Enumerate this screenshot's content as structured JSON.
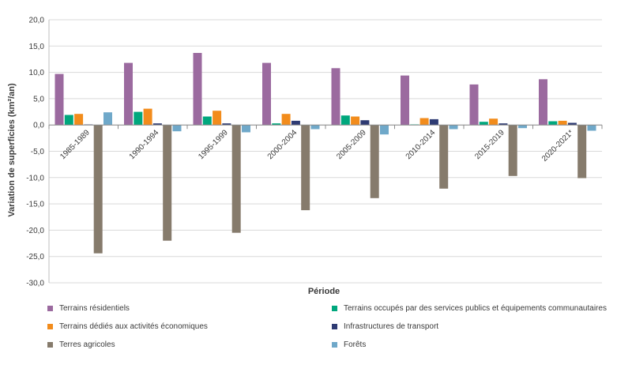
{
  "chart_data": {
    "type": "bar",
    "title": "",
    "xlabel": "Période",
    "ylabel": "Variation de superficies (km²/an)",
    "ylim": [
      -30,
      20
    ],
    "yticks": [
      "20,0",
      "15,0",
      "10,0",
      "5,0",
      "0,0",
      "-5,0",
      "-10,0",
      "-15,0",
      "-20,0",
      "-25,0",
      "-30,0"
    ],
    "grid": true,
    "legend_position": "bottom",
    "categories": [
      "1985-1989",
      "1990-1994",
      "1995-1999",
      "2000-2004",
      "2005-2009",
      "2010-2014",
      "2015-2019",
      "2020-2021*"
    ],
    "series": [
      {
        "name": "Terrains résidentiels",
        "color": "#9b6a9f",
        "values": [
          9.7,
          11.8,
          13.7,
          11.8,
          10.8,
          9.4,
          7.7,
          8.7
        ]
      },
      {
        "name": "Terrains occupés par des services publics et équipements communautaires",
        "color": "#00a77d",
        "values": [
          1.9,
          2.5,
          1.6,
          0.3,
          1.8,
          0.1,
          0.6,
          0.7
        ]
      },
      {
        "name": "Terrains dédiés aux activités économiques",
        "color": "#f28c1c",
        "values": [
          2.1,
          3.1,
          2.7,
          2.1,
          1.6,
          1.3,
          1.2,
          0.8
        ]
      },
      {
        "name": "Infrastructures de transport",
        "color": "#2e3b73",
        "values": [
          0.1,
          0.3,
          0.3,
          0.8,
          0.9,
          1.1,
          0.3,
          0.4
        ]
      },
      {
        "name": "Terres agricoles",
        "color": "#867b6c",
        "values": [
          -24.4,
          -22.0,
          -20.5,
          -16.2,
          -13.9,
          -12.1,
          -9.7,
          -10.1
        ]
      },
      {
        "name": "Forêts",
        "color": "#6fa8c9",
        "values": [
          2.4,
          -1.2,
          -1.4,
          -0.8,
          -1.8,
          -0.8,
          -0.6,
          -1.1
        ]
      }
    ]
  }
}
